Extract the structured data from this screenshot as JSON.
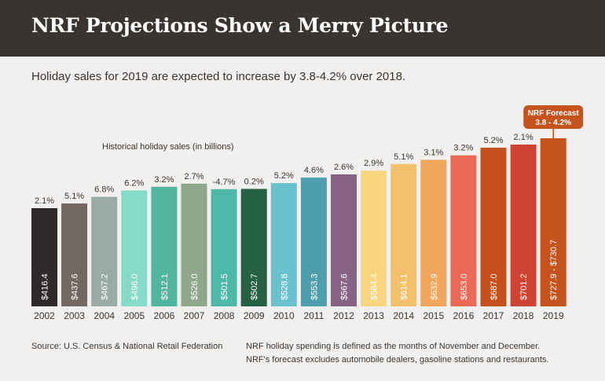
{
  "header": {
    "title": "NRF Projections Show a Merry Picture",
    "subtitle": "Holiday sales for 2019 are expected to increase by 3.8-4.2% over 2018."
  },
  "footer": {
    "source": "Source: U.S. Census & National Retail Federation",
    "note_line1": "NRF holiday spending is defined as the months of November and December.",
    "note_line2": "NRF's forecast excludes automobile dealers, gasoline stations and restaurants."
  },
  "chart_data": {
    "type": "bar",
    "title": "NRF Projections Show a Merry Picture",
    "subtitle": "Holiday sales for 2019 are expected to increase by 3.8-4.2% over 2018.",
    "series_label": "Historical holiday sales (in billions)",
    "ylabel": "",
    "xlabel": "",
    "ylim": [
      0,
      760
    ],
    "categories": [
      "2002",
      "2003",
      "2004",
      "2005",
      "2006",
      "2007",
      "2008",
      "2009",
      "2010",
      "2011",
      "2012",
      "2013",
      "2014",
      "2015",
      "2016",
      "2017",
      "2018",
      "2019"
    ],
    "values": [
      416.4,
      437.6,
      467.2,
      496.0,
      512.1,
      526.0,
      501.5,
      502.7,
      528.8,
      553.3,
      567.6,
      584.4,
      614.1,
      632.9,
      653.0,
      687.0,
      701.2,
      729.3
    ],
    "value_labels": [
      "$416.4",
      "$437.6",
      "$467.2",
      "$496.0",
      "$512.1",
      "$526.0",
      "$501.5",
      "$502.7",
      "$528.8",
      "$553.3",
      "$567.6",
      "$584.4",
      "$614.1",
      "$632.9",
      "$653.0",
      "$687.0",
      "$701.2",
      "$727.9 - $730.7"
    ],
    "growth_labels": [
      "2.1%",
      "5.1%",
      "6.8%",
      "6.2%",
      "3.2%",
      "2.7%",
      "-4.7%",
      "0.2%",
      "5.2%",
      "4.6%",
      "2.6%",
      "2.9%",
      "5.1%",
      "3.1%",
      "3.2%",
      "5.2%",
      "2.1%",
      ""
    ],
    "colors": [
      "#2e2a29",
      "#726761",
      "#9aaaa7",
      "#86dbc8",
      "#52b5a0",
      "#8fa88b",
      "#4fb9a9",
      "#256143",
      "#6ac2cc",
      "#4e9fad",
      "#876486",
      "#f8d57e",
      "#f3c16b",
      "#f0a65c",
      "#ea6a57",
      "#c4511d",
      "#ce4334",
      "#c4531e"
    ],
    "forecast": {
      "category": "2019",
      "label_line1": "NRF Forecast",
      "label_line2": "3.8 - 4.2%",
      "color": "#c4531e"
    }
  }
}
